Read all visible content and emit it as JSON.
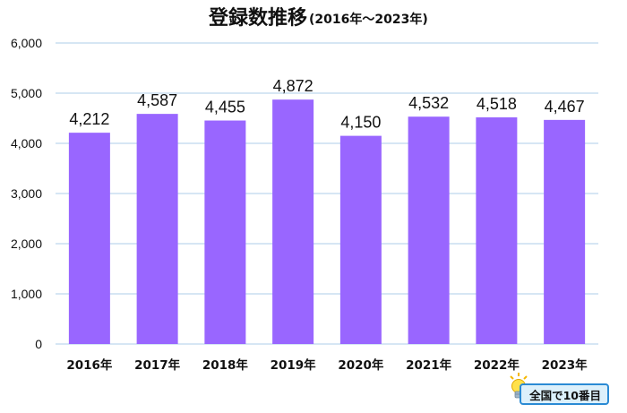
{
  "chart_data": {
    "type": "bar",
    "title": "登録数推移",
    "subtitle": "(2016年～2023年)",
    "categories": [
      "2016年",
      "2017年",
      "2018年",
      "2019年",
      "2020年",
      "2021年",
      "2022年",
      "2023年"
    ],
    "values": [
      4212,
      4587,
      4455,
      4872,
      4150,
      4532,
      4518,
      4467
    ],
    "data_labels": [
      "4,212",
      "4,587",
      "4,455",
      "4,872",
      "4,150",
      "4,532",
      "4,518",
      "4,467"
    ],
    "yticks": [
      0,
      1000,
      2000,
      3000,
      4000,
      5000,
      6000
    ],
    "ytick_labels": [
      "0",
      "1,000",
      "2,000",
      "3,000",
      "4,000",
      "5,000",
      "6,000"
    ],
    "ylim": [
      0,
      6000
    ],
    "xlabel": "",
    "ylabel": "",
    "grid": true,
    "legend": "none",
    "bar_color": "#9966ff",
    "highlight_index": 7,
    "highlight_label_color": "#ff0000"
  },
  "badge": {
    "text": "全国で10番目",
    "icon": "lightbulb-icon"
  }
}
